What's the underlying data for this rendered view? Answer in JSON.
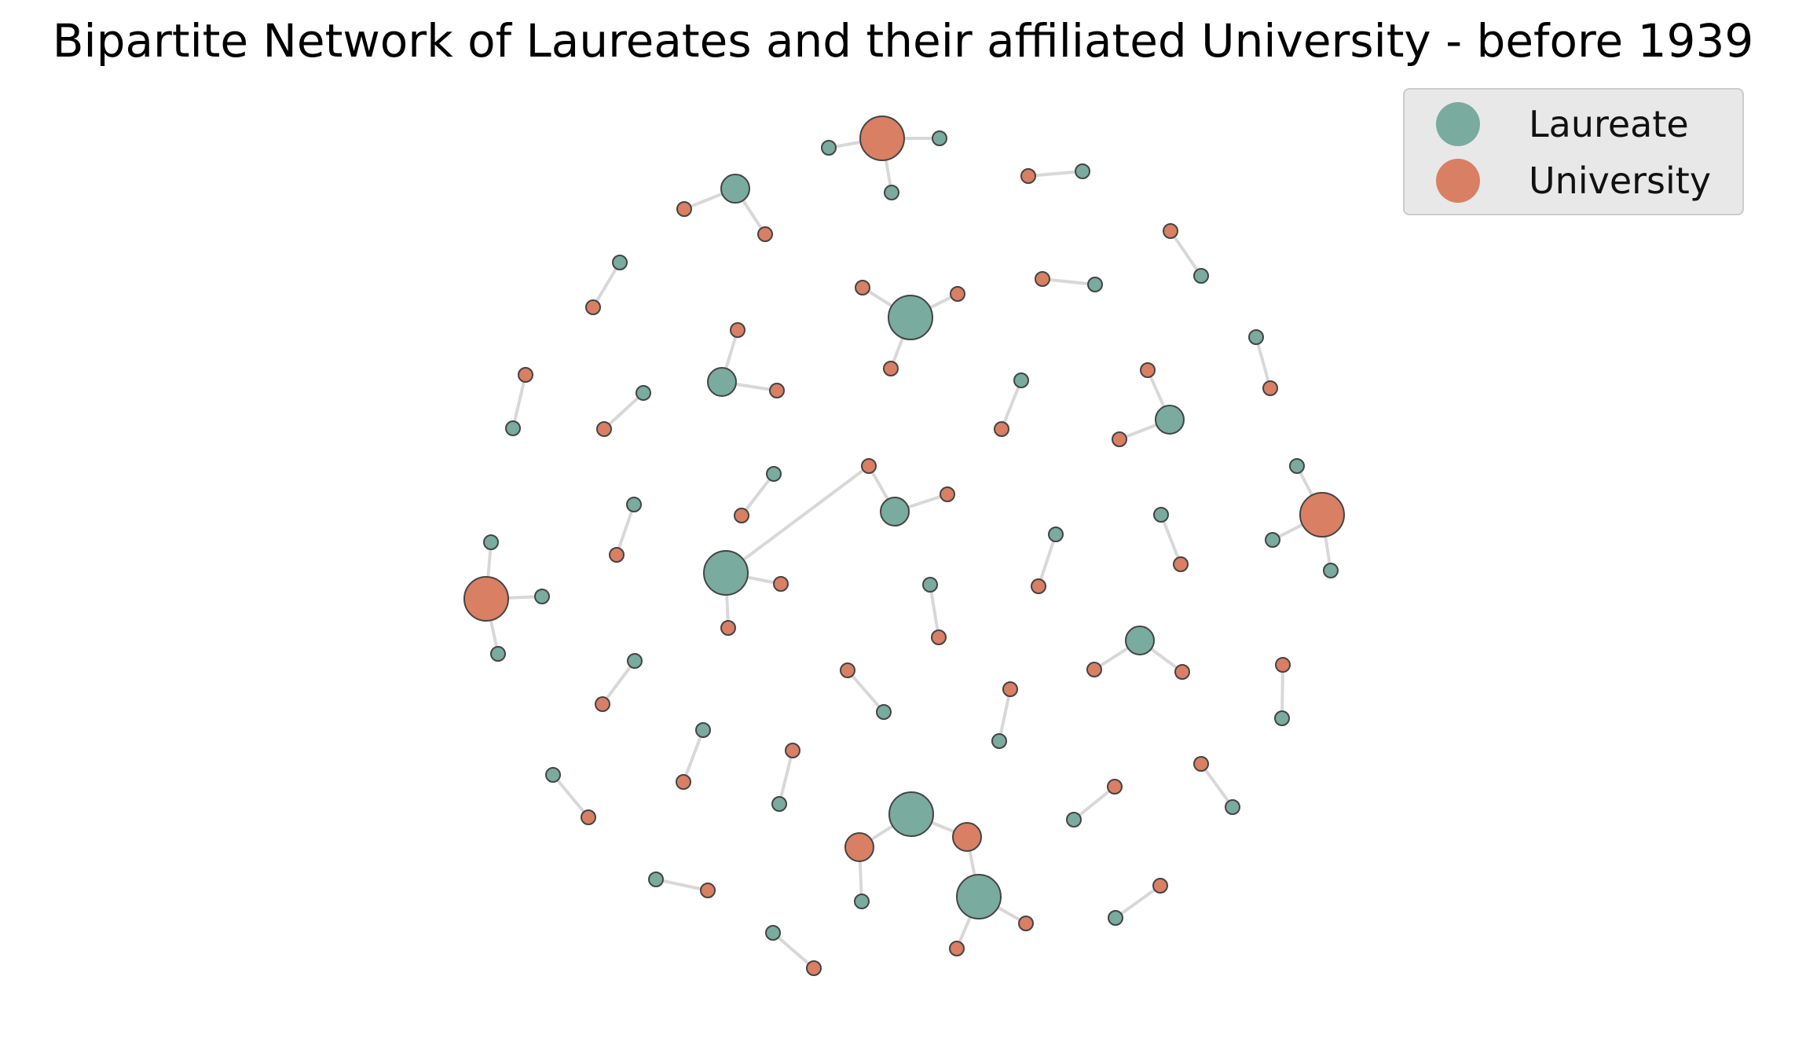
{
  "title": "Bipartite Network of Laureates and their affiliated University - before 1939",
  "colors": {
    "laureate": "#79ab9f",
    "university": "#d97f64",
    "edge": "#d8d8d8",
    "stroke": "#444444"
  },
  "legend": {
    "laureate_label": "Laureate",
    "university_label": "University"
  },
  "clusters": [
    {
      "hub": "university",
      "hub_degree": 3,
      "leaves": 3
    },
    {
      "hub": "laureate",
      "hub_degree": 2,
      "leaves": 2
    },
    {
      "hub": "laureate",
      "hub_degree": 3,
      "leaves": 3
    },
    {
      "hub": "laureate",
      "hub_degree": 2,
      "leaves": 2
    },
    {
      "hub": "laureate",
      "hub_degree": 2,
      "leaves": 2
    },
    {
      "hub": "laureate",
      "hub_degree": 2,
      "leaves": 2
    },
    {
      "hub": "university",
      "hub_degree": 3,
      "leaves": 3
    },
    {
      "hub": "university",
      "hub_degree": 3,
      "leaves": 3
    },
    {
      "hub": "laureate",
      "hub_degree": 3,
      "leaves": 3
    },
    {
      "hub": "laureate",
      "hub_degree": 2,
      "leaves": 2
    },
    {
      "hub": "laureate",
      "hub_degree": 3,
      "leaves": 3
    }
  ],
  "pair_count": 28
}
